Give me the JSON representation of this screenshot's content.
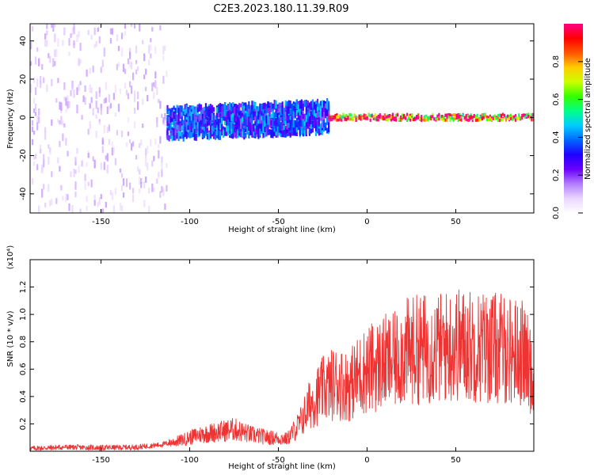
{
  "title": "C2E3.2023.180.11.39.R09",
  "colors": {
    "snr_line": "#ee3333",
    "colorbar_stops": [
      "#ffffff",
      "#e9d6ff",
      "#b37dff",
      "#6a00ff",
      "#1f00ff",
      "#0066ff",
      "#00ccff",
      "#00ff88",
      "#33ff00",
      "#ccff00",
      "#ffcc00",
      "#ff5500",
      "#ff0000",
      "#ff0088"
    ]
  },
  "chart_data": [
    {
      "type": "heatmap",
      "xlabel": "Height of straight line (km)",
      "ylabel": "Frequency (Hz)",
      "xlim": [
        -190,
        94
      ],
      "ylim": [
        -50,
        49
      ],
      "xticks": [
        -150,
        -100,
        -50,
        0,
        50
      ],
      "yticks": [
        -40,
        -20,
        0,
        20,
        40
      ],
      "colorbar": {
        "label": "Normalized spectral amplitude",
        "range": [
          0,
          1
        ],
        "ticks": [
          0.0,
          0.2,
          0.4,
          0.6,
          0.8
        ]
      },
      "regions": [
        {
          "x_range": [
            -190,
            -113
          ],
          "freq_spread_hz": 49,
          "amplitude": 0.1,
          "description": "scattered weak signal"
        },
        {
          "x_range": [
            -113,
            -22
          ],
          "freq_center_hz_start": -3,
          "freq_center_hz_end": 0,
          "freq_spread_hz": 10,
          "amplitude": 0.35
        },
        {
          "x_range": [
            -22,
            94
          ],
          "freq_center_hz": 0,
          "freq_spread_hz": 2,
          "amplitude": 0.95
        }
      ],
      "grid": false
    },
    {
      "type": "line",
      "xlabel": "Height of straight line (km)",
      "ylabel": "SNR (10 * v/v)",
      "y_multiplier_label": "(x10⁴)",
      "xlim": [
        -190,
        94
      ],
      "ylim": [
        0,
        1.4
      ],
      "xticks": [
        -150,
        -100,
        -50,
        0,
        50
      ],
      "yticks": [
        0.2,
        0.4,
        0.6,
        0.8,
        1.0,
        1.2
      ],
      "series": [
        {
          "x": [
            -190,
            -170,
            -150,
            -130,
            -115,
            -105,
            -95,
            -85,
            -75,
            -65,
            -55,
            -45,
            -38,
            -32,
            -25,
            -18,
            -10,
            -5,
            0,
            5,
            10,
            15,
            20,
            30,
            40,
            50,
            60,
            70,
            80,
            88,
            92,
            94
          ],
          "y": [
            0.02,
            0.03,
            0.025,
            0.03,
            0.05,
            0.08,
            0.12,
            0.14,
            0.16,
            0.12,
            0.1,
            0.09,
            0.2,
            0.35,
            0.45,
            0.5,
            0.48,
            0.55,
            0.6,
            0.62,
            0.65,
            0.65,
            0.72,
            0.75,
            0.75,
            0.78,
            0.77,
            0.76,
            0.74,
            0.72,
            0.6,
            0.45
          ]
        }
      ],
      "grid": false
    }
  ]
}
